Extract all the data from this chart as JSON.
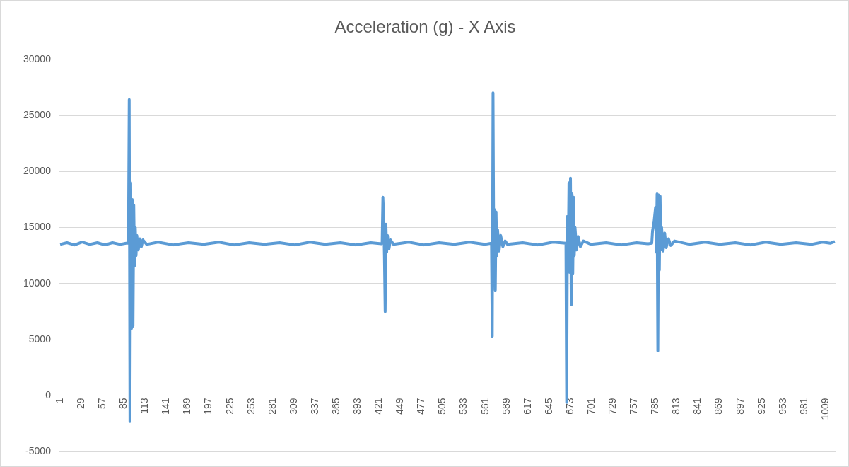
{
  "chart_data": {
    "type": "line",
    "title": "Acceleration (g) - X Axis",
    "xlim": [
      0,
      1022
    ],
    "xticks": [
      1,
      29,
      57,
      85,
      113,
      141,
      169,
      197,
      225,
      253,
      281,
      309,
      337,
      365,
      393,
      421,
      449,
      477,
      505,
      533,
      561,
      589,
      617,
      645,
      673,
      701,
      729,
      757,
      785,
      813,
      841,
      869,
      897,
      925,
      953,
      981,
      1009
    ],
    "ylim": [
      -5000,
      30000
    ],
    "yticks": [
      -5000,
      0,
      5000,
      10000,
      15000,
      20000,
      25000,
      30000
    ],
    "grid": "y",
    "legend": false,
    "marker": "none",
    "line_style": "solid",
    "series": [
      {
        "color": "#5b9bd5",
        "x": [
          1,
          10,
          20,
          30,
          40,
          50,
          60,
          70,
          80,
          88,
          91,
          92,
          93,
          94,
          95,
          96,
          97,
          98,
          99,
          100,
          101,
          102,
          104,
          106,
          108,
          110,
          115,
          130,
          150,
          170,
          190,
          210,
          230,
          250,
          270,
          290,
          310,
          330,
          350,
          370,
          390,
          410,
          424,
          425,
          426,
          427,
          428,
          429,
          430,
          431,
          432,
          434,
          436,
          440,
          460,
          480,
          500,
          520,
          540,
          560,
          569,
          570,
          571,
          572,
          573,
          574,
          575,
          576,
          577,
          579,
          581,
          584,
          587,
          590,
          610,
          630,
          650,
          667,
          668,
          669,
          670,
          671,
          672,
          673,
          674,
          675,
          676,
          677,
          678,
          679,
          681,
          683,
          686,
          690,
          700,
          720,
          740,
          760,
          775,
          780,
          781,
          783,
          785,
          786,
          787,
          788,
          789,
          790,
          791,
          792,
          793,
          795,
          797,
          799,
          802,
          805,
          810,
          830,
          850,
          870,
          890,
          910,
          930,
          950,
          970,
          990,
          1005,
          1015,
          1021
        ],
        "values": [
          13500,
          13650,
          13450,
          13700,
          13500,
          13650,
          13450,
          13650,
          13500,
          13600,
          13600,
          26400,
          -2300,
          19000,
          6000,
          17500,
          6200,
          17000,
          11600,
          15000,
          12500,
          14300,
          13000,
          14000,
          13300,
          13900,
          13500,
          13700,
          13450,
          13650,
          13500,
          13700,
          13450,
          13650,
          13500,
          13650,
          13450,
          13700,
          13500,
          13650,
          13450,
          13650,
          13550,
          13600,
          17700,
          16000,
          12500,
          7500,
          15300,
          12800,
          14300,
          13100,
          13900,
          13500,
          13700,
          13450,
          13650,
          13500,
          13700,
          13500,
          13600,
          5300,
          27000,
          12300,
          16600,
          9400,
          16400,
          12500,
          14800,
          12900,
          14300,
          13300,
          13800,
          13500,
          13650,
          13450,
          13700,
          13600,
          -600,
          16000,
          12000,
          19000,
          11000,
          19400,
          8100,
          18000,
          10900,
          17700,
          12500,
          15000,
          13000,
          14200,
          13300,
          13800,
          13500,
          13650,
          13450,
          13650,
          13550,
          13600,
          14700,
          15500,
          16800,
          12800,
          18000,
          4000,
          17900,
          11200,
          17800,
          13000,
          15000,
          12900,
          14500,
          13200,
          14000,
          13400,
          13800,
          13500,
          13700,
          13500,
          13650,
          13450,
          13700,
          13500,
          13650,
          13500,
          13700,
          13600,
          13750
        ]
      }
    ]
  }
}
